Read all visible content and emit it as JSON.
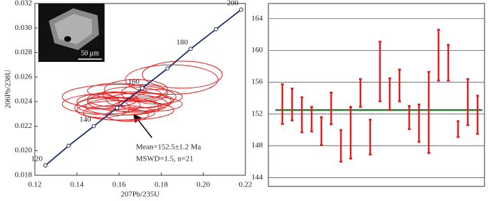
{
  "chart_data": [
    {
      "type": "concordia",
      "x_label": "207Pb/235U",
      "y_label": "206Pb/238U",
      "xlim": [
        0.12,
        0.22
      ],
      "ylim": [
        0.018,
        0.032
      ],
      "xticks": [
        0.12,
        0.14,
        0.16,
        0.18,
        {
          "value": 0.2,
          "label": "0.20"
        },
        0.22
      ],
      "yticks": [
        0.018,
        {
          "value": 0.02,
          "label": "0.020"
        },
        0.022,
        0.024,
        0.026,
        0.028,
        {
          "value": 0.03,
          "label": "0.030"
        },
        0.032
      ],
      "concordia": {
        "color": "#1c2c6e",
        "x": [
          0.125,
          0.136,
          0.148,
          0.159,
          0.171,
          0.183,
          0.194,
          0.206,
          0.218
        ],
        "y": [
          0.0188,
          0.0204,
          0.022,
          0.0235,
          0.0251,
          0.0267,
          0.0283,
          0.0299,
          0.0315
        ],
        "labels": [
          120,
          null,
          140,
          null,
          160,
          null,
          180,
          null,
          200
        ]
      },
      "ellipse_color": "#e02020",
      "ellipses": [
        {
          "x": 0.19,
          "y": 0.0262,
          "x_err": 0.019,
          "y_err": 0.0011
        },
        {
          "x": 0.185,
          "y": 0.0258,
          "x_err": 0.022,
          "y_err": 0.0012
        },
        {
          "x": 0.168,
          "y": 0.025,
          "x_err": 0.015,
          "y_err": 0.0008
        },
        {
          "x": 0.16,
          "y": 0.0244,
          "x_err": 0.027,
          "y_err": 0.001
        },
        {
          "x": 0.165,
          "y": 0.024,
          "x_err": 0.02,
          "y_err": 0.0008
        },
        {
          "x": 0.158,
          "y": 0.0238,
          "x_err": 0.025,
          "y_err": 0.0009
        },
        {
          "x": 0.162,
          "y": 0.0236,
          "x_err": 0.018,
          "y_err": 0.0007
        },
        {
          "x": 0.155,
          "y": 0.0237,
          "x_err": 0.015,
          "y_err": 0.0007
        },
        {
          "x": 0.17,
          "y": 0.0241,
          "x_err": 0.016,
          "y_err": 0.0006
        },
        {
          "x": 0.163,
          "y": 0.0233,
          "x_err": 0.023,
          "y_err": 0.0008
        },
        {
          "x": 0.157,
          "y": 0.0242,
          "x_err": 0.012,
          "y_err": 0.0006
        },
        {
          "x": 0.166,
          "y": 0.0246,
          "x_err": 0.014,
          "y_err": 0.0006
        },
        {
          "x": 0.152,
          "y": 0.0235,
          "x_err": 0.013,
          "y_err": 0.0008
        },
        {
          "x": 0.175,
          "y": 0.0238,
          "x_err": 0.015,
          "y_err": 0.0006
        },
        {
          "x": 0.16,
          "y": 0.0231,
          "x_err": 0.017,
          "y_err": 0.0006
        },
        {
          "x": 0.168,
          "y": 0.0236,
          "x_err": 0.011,
          "y_err": 0.0005
        },
        {
          "x": 0.15,
          "y": 0.024,
          "x_err": 0.01,
          "y_err": 0.0006
        },
        {
          "x": 0.172,
          "y": 0.0247,
          "x_err": 0.011,
          "y_err": 0.0007
        },
        {
          "x": 0.159,
          "y": 0.0249,
          "x_err": 0.014,
          "y_err": 0.0006
        },
        {
          "x": 0.164,
          "y": 0.0229,
          "x_err": 0.01,
          "y_err": 0.0005
        },
        {
          "x": 0.178,
          "y": 0.0244,
          "x_err": 0.012,
          "y_err": 0.0006
        }
      ],
      "annotation": [
        "Mean=152.5±1.2 Ma",
        "MSWD=1.5, n=21"
      ],
      "inset_scale_label": "50 μm"
    },
    {
      "type": "errorbar",
      "ylim": [
        142.9,
        165.9
      ],
      "yticks": [
        144,
        148,
        152,
        156,
        160,
        164
      ],
      "grid": true,
      "color": "#e02020",
      "values": [
        153.25,
        153.2,
        151.9,
        151.35,
        149.85,
        152.7,
        148.0,
        149.65,
        154.65,
        149.1,
        157.35,
        154.5,
        155.6,
        151.55,
        150.85,
        152.2,
        159.4,
        158.45,
        150.1,
        153.5,
        151.9
      ],
      "errors": [
        2.5,
        2.0,
        2.2,
        1.55,
        1.75,
        2.0,
        2.0,
        3.25,
        1.75,
        2.2,
        3.75,
        2.0,
        2.0,
        1.45,
        2.35,
        5.1,
        3.2,
        2.25,
        1.0,
        2.9,
        2.4
      ],
      "mean_line": 152.5,
      "mean_color": "#2e7d32"
    }
  ]
}
